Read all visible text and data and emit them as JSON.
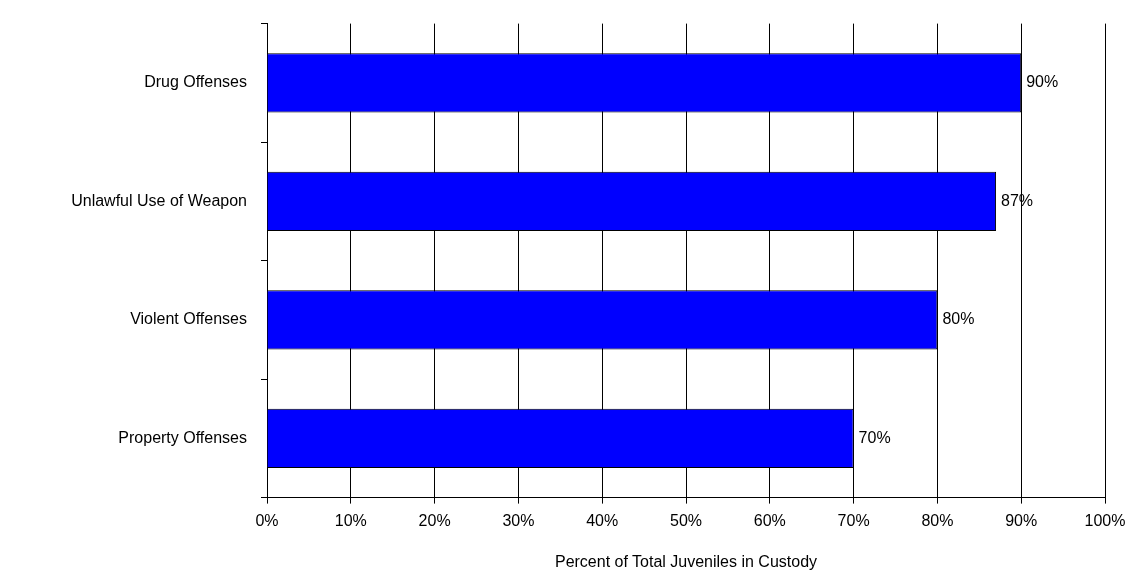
{
  "chart_data": {
    "type": "bar",
    "orientation": "horizontal",
    "categories": [
      "Drug Offenses",
      "Unlawful Use of Weapon",
      "Violent Offenses",
      "Property Offenses"
    ],
    "values": [
      90,
      87,
      80,
      70
    ],
    "color": "#0000ff",
    "xlabel": "Percent of Total Juveniles in Custody",
    "xlim": [
      0,
      100
    ],
    "xticks": [
      {
        "value": 0,
        "label": "0%"
      },
      {
        "value": 10,
        "label": "10%"
      },
      {
        "value": 20,
        "label": "20%"
      },
      {
        "value": 30,
        "label": "30%"
      },
      {
        "value": 40,
        "label": "40%"
      },
      {
        "value": 50,
        "label": "50%"
      },
      {
        "value": 60,
        "label": "60%"
      },
      {
        "value": 70,
        "label": "70%"
      },
      {
        "value": 80,
        "label": "80%"
      },
      {
        "value": 90,
        "label": "90%"
      },
      {
        "value": 100,
        "label": "100%"
      }
    ],
    "value_labels": [
      "90%",
      "87%",
      "80%",
      "70%"
    ],
    "grid": "x",
    "legend": false
  }
}
